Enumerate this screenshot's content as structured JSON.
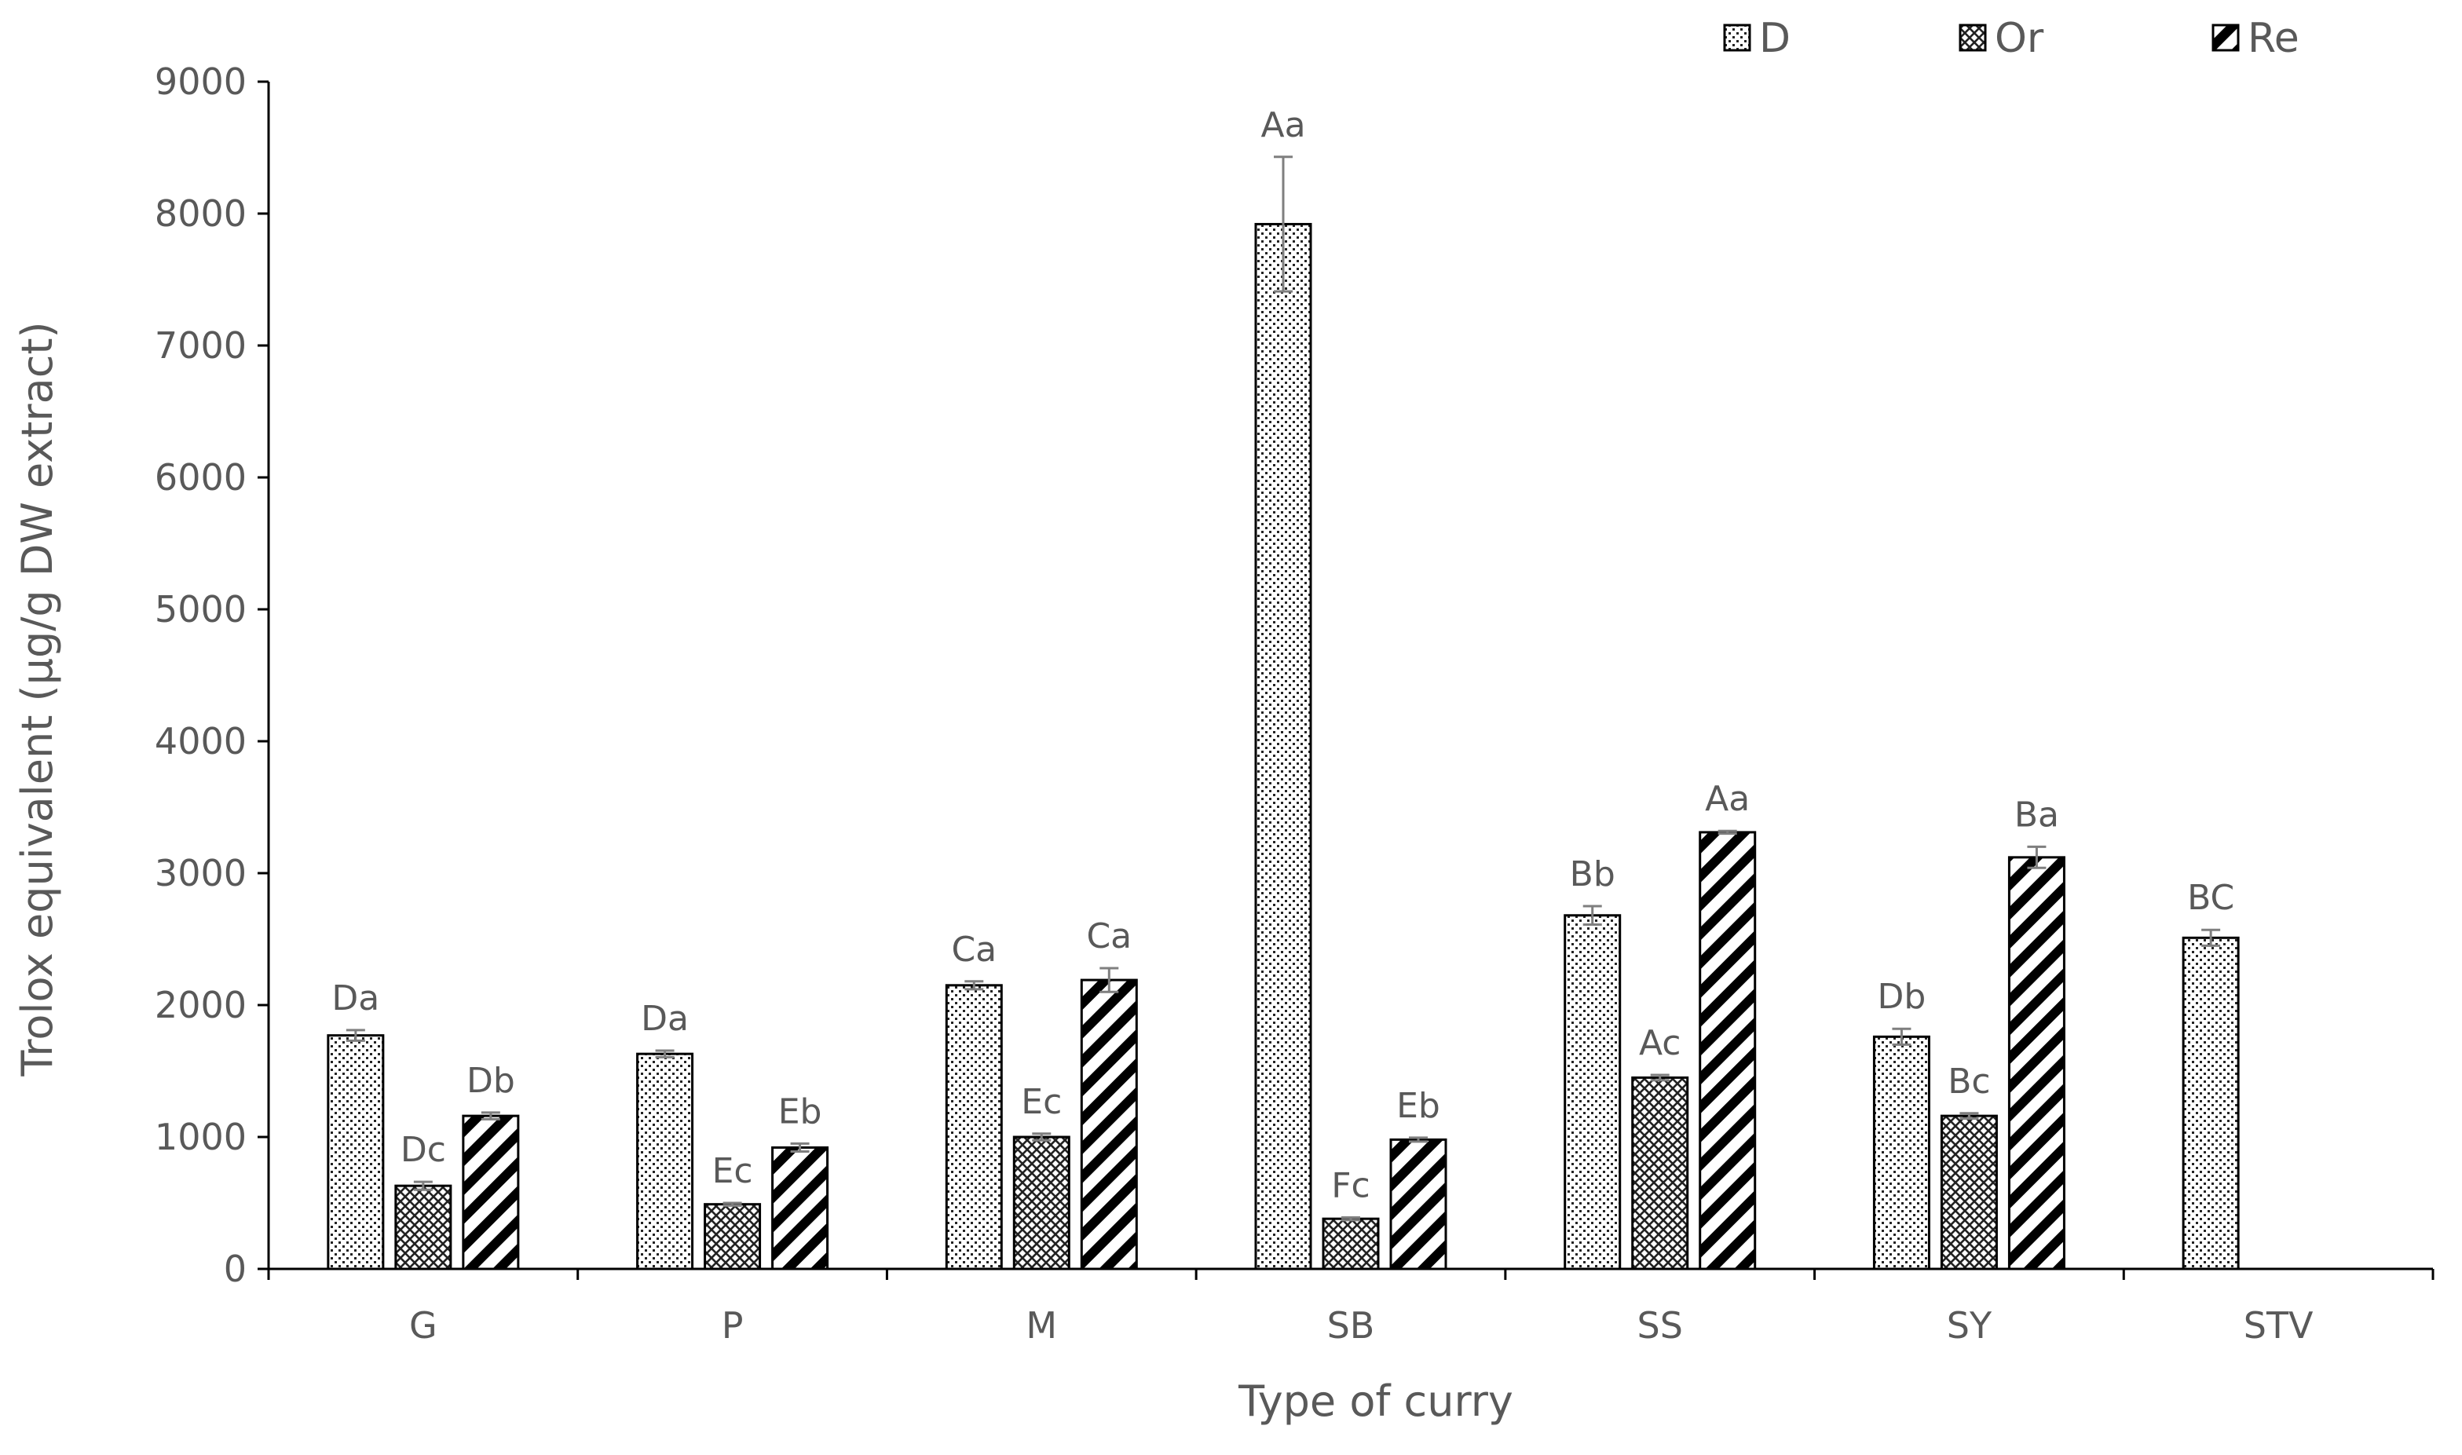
{
  "chart_data": {
    "type": "bar",
    "title": "",
    "xlabel": "Type of curry",
    "ylabel": "Trolox equivalent (μg/g DW extract)",
    "ylim": [
      0,
      9000
    ],
    "yticks": [
      0,
      1000,
      2000,
      3000,
      4000,
      5000,
      6000,
      7000,
      8000,
      9000
    ],
    "grid": false,
    "legend_position": "top-right",
    "categories": [
      "G",
      "P",
      "M",
      "SB",
      "SS",
      "SY",
      "STV"
    ],
    "series": [
      {
        "name": "D",
        "pattern": "dots",
        "values": [
          1770,
          1630,
          2150,
          7920,
          2680,
          1760,
          2510
        ],
        "errors": [
          40,
          25,
          30,
          510,
          70,
          60,
          60
        ],
        "labels": [
          "Da",
          "Da",
          "Ca",
          "Aa",
          "Bb",
          "Db",
          "BC"
        ]
      },
      {
        "name": "Or",
        "pattern": "crosshatch",
        "values": [
          630,
          490,
          1000,
          380,
          1450,
          1160,
          null
        ],
        "errors": [
          30,
          10,
          25,
          10,
          20,
          20,
          null
        ],
        "labels": [
          "Dc",
          "Ec",
          "Ec",
          "Fc",
          "Ac",
          "Bc",
          ""
        ]
      },
      {
        "name": "Re",
        "pattern": "diagonal",
        "values": [
          1160,
          920,
          2190,
          980,
          3310,
          3120,
          null
        ],
        "errors": [
          25,
          30,
          90,
          15,
          10,
          80,
          null
        ],
        "labels": [
          "Db",
          "Eb",
          "Ca",
          "Eb",
          "Aa",
          "Ba",
          ""
        ]
      }
    ]
  }
}
